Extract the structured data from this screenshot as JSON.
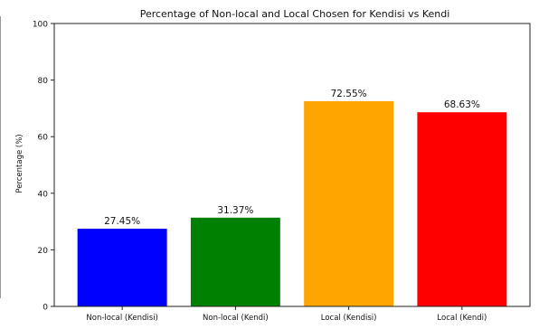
{
  "chart_data": {
    "type": "bar",
    "title": "Percentage of Non-local and Local Chosen for Kendisi vs Kendi",
    "xlabel": "",
    "ylabel": "Percentage (%)",
    "ylim": [
      0,
      100
    ],
    "yticks": [
      0,
      20,
      40,
      60,
      80,
      100
    ],
    "categories": [
      "Non-local (Kendisi)",
      "Non-local (Kendi)",
      "Local (Kendisi)",
      "Local (Kendi)"
    ],
    "values": [
      27.45,
      31.37,
      72.55,
      68.63
    ],
    "value_labels": [
      "27.45%",
      "31.37%",
      "72.55%",
      "68.63%"
    ],
    "colors": [
      "#0000ff",
      "#008000",
      "#ffa500",
      "#ff0000"
    ],
    "grid": false,
    "legend": "none"
  }
}
